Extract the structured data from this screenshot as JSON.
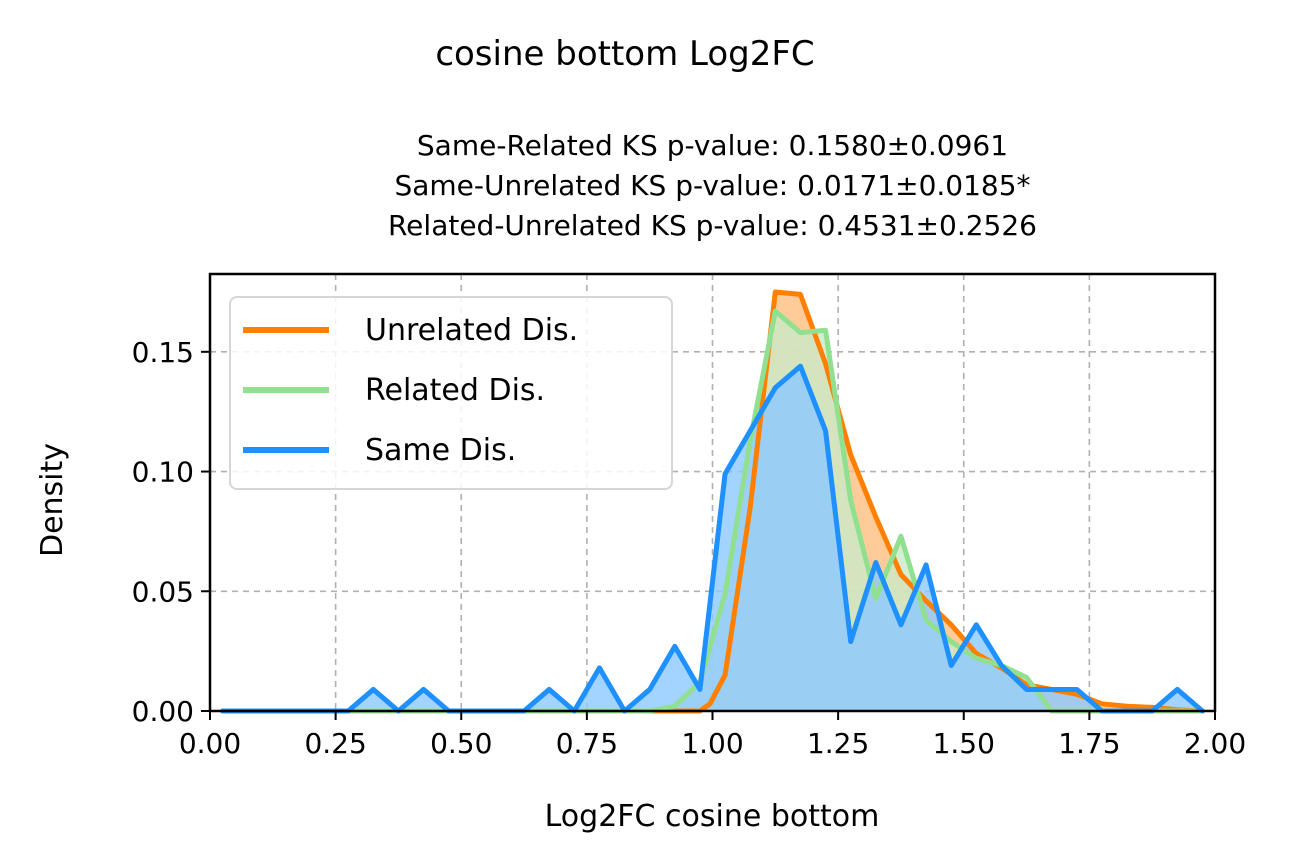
{
  "chart_data": {
    "type": "area",
    "title": "cosine bottom Log2FC",
    "subtitle": [
      "Same-Related KS p-value: 0.1580±0.0961",
      "Same-Unrelated KS p-value: 0.0171±0.0185*",
      "Related-Unrelated KS p-value: 0.4531±0.2526"
    ],
    "xlabel": "Log2FC cosine bottom",
    "ylabel": "Density",
    "xlim": [
      0.0,
      2.0
    ],
    "ylim": [
      0.0,
      0.1825
    ],
    "xticks": [
      "0.00",
      "0.25",
      "0.50",
      "0.75",
      "1.00",
      "1.25",
      "1.50",
      "1.75",
      "2.00"
    ],
    "yticks": [
      "0.00",
      "0.05",
      "0.10",
      "0.15"
    ],
    "grid": true,
    "legend_position": "upper-left",
    "series": [
      {
        "name": "Unrelated Dis.",
        "color": "#ff8000",
        "fill": "#ffbf80",
        "x": [
          0.025,
          0.975,
          0.995,
          1.025,
          1.075,
          1.125,
          1.175,
          1.225,
          1.275,
          1.325,
          1.375,
          1.425,
          1.475,
          1.525,
          1.575,
          1.625,
          1.675,
          1.725,
          1.775,
          1.825,
          1.875,
          1.925,
          1.975
        ],
        "y": [
          0.0,
          0.0,
          0.003,
          0.015,
          0.085,
          0.175,
          0.174,
          0.145,
          0.107,
          0.081,
          0.057,
          0.046,
          0.036,
          0.024,
          0.018,
          0.011,
          0.009,
          0.007,
          0.003,
          0.002,
          0.0015,
          0.0005,
          0.0
        ]
      },
      {
        "name": "Related Dis.",
        "color": "#90e090",
        "fill": "#c8eac8",
        "x": [
          0.025,
          0.875,
          0.925,
          0.975,
          1.025,
          1.075,
          1.125,
          1.175,
          1.225,
          1.275,
          1.325,
          1.375,
          1.425,
          1.475,
          1.525,
          1.575,
          1.625,
          1.675,
          1.725,
          1.975
        ],
        "y": [
          0.0,
          0.0,
          0.002,
          0.012,
          0.049,
          0.113,
          0.167,
          0.158,
          0.159,
          0.088,
          0.047,
          0.073,
          0.038,
          0.029,
          0.022,
          0.019,
          0.014,
          0.0,
          0.0,
          0.0
        ]
      },
      {
        "name": "Same Dis.",
        "color": "#1e90ff",
        "fill": "#8cc8ff",
        "x": [
          0.025,
          0.275,
          0.325,
          0.375,
          0.425,
          0.475,
          0.525,
          0.575,
          0.625,
          0.675,
          0.725,
          0.775,
          0.825,
          0.875,
          0.925,
          0.975,
          1.025,
          1.075,
          1.125,
          1.175,
          1.225,
          1.275,
          1.325,
          1.375,
          1.425,
          1.475,
          1.525,
          1.575,
          1.625,
          1.675,
          1.725,
          1.775,
          1.825,
          1.875,
          1.925,
          1.975
        ],
        "y": [
          0.0,
          0.0,
          0.009,
          0.0,
          0.009,
          0.0,
          0.0,
          0.0,
          0.0,
          0.009,
          0.0,
          0.018,
          0.0,
          0.009,
          0.027,
          0.009,
          0.099,
          0.117,
          0.135,
          0.144,
          0.117,
          0.029,
          0.062,
          0.036,
          0.061,
          0.019,
          0.036,
          0.019,
          0.009,
          0.009,
          0.009,
          0.0,
          0.0,
          0.0,
          0.009,
          0.0
        ]
      }
    ]
  }
}
